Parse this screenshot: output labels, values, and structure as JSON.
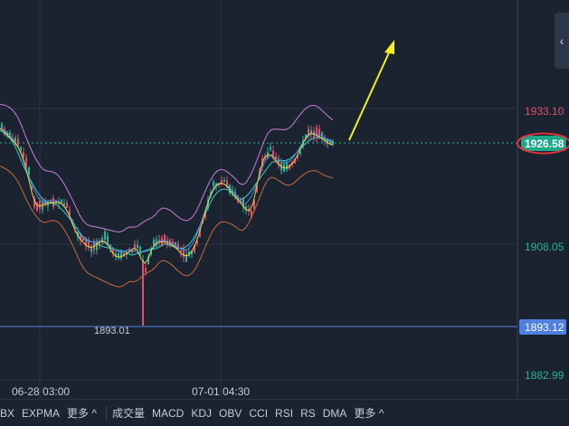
{
  "price_axis": {
    "labels": [
      {
        "value": 1933.1,
        "text": "1933.10",
        "color": "#e0506a"
      },
      {
        "value": 1908.05,
        "text": "1908.05",
        "color": "#26b59a"
      },
      {
        "value": 1882.99,
        "text": "1882.99",
        "color": "#26b59a"
      }
    ],
    "current_price": {
      "value": 1926.58,
      "text": "1926.58",
      "bg": "#1ca889",
      "ring": "#e0303a"
    },
    "line_price": {
      "value": 1893.12,
      "text": "1893.12",
      "bg": "#4f80e0"
    }
  },
  "low_annotation": "1893.01",
  "time_axis": [
    "06-28 03:00",
    "07-01 04:30"
  ],
  "toolbar": {
    "main_indicators": [
      "BX",
      "EXPMA"
    ],
    "main_more": "更多 ^",
    "sub_indicators": [
      "成交量",
      "MACD",
      "KDJ",
      "OBV",
      "CCI",
      "RSI",
      "RS",
      "DMA"
    ],
    "sub_more": "更多 ^"
  },
  "colors": {
    "up": "#26b59a",
    "down": "#e0506a",
    "boll_upper": "#c77fd6",
    "boll_lower": "#c86b3a",
    "ma_fast": "#f0d040",
    "ma_mid": "#4f80e0",
    "ma_slow": "#2fd0c0",
    "arrow": "#f5f020"
  },
  "panel_toggle_icon": "chevron-left-icon"
}
